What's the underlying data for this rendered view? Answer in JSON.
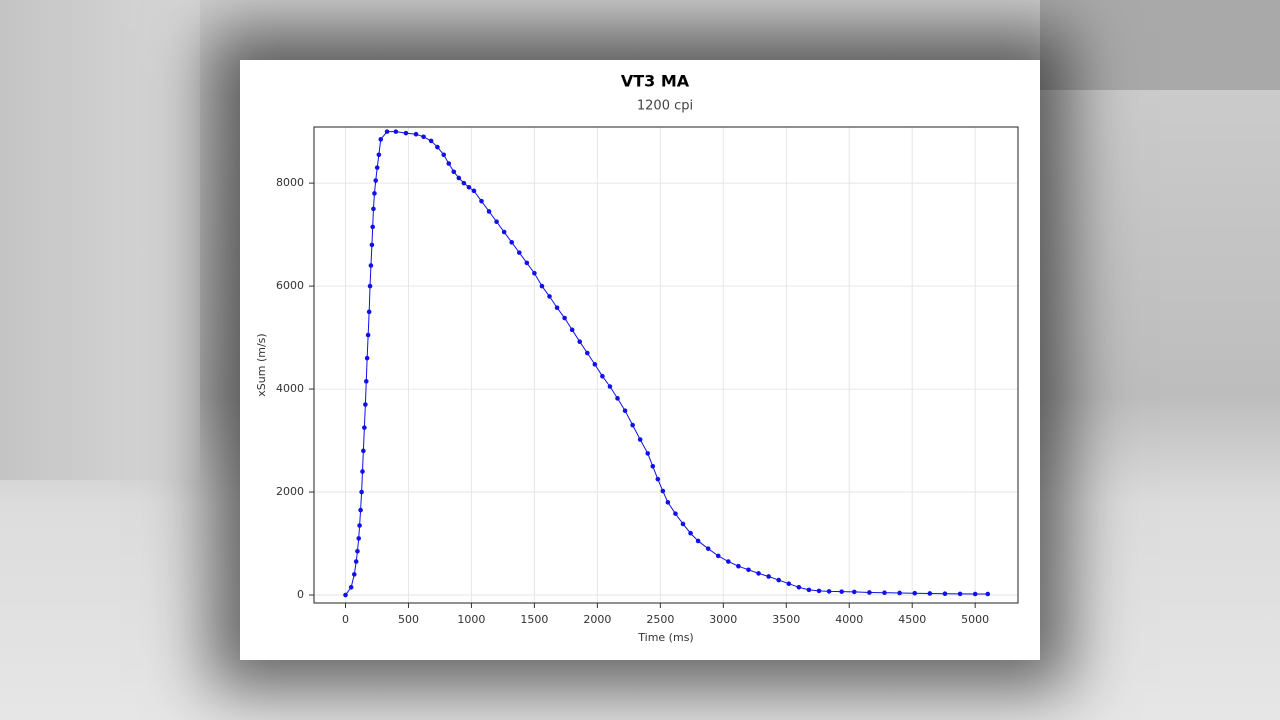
{
  "chart_data": {
    "type": "line",
    "title": "VT3 MA",
    "subtitle": "1200 cpi",
    "x_label": "Time (ms)",
    "y_label": "xSum (m/s)",
    "xlim": [
      -250,
      5340
    ],
    "ylim": [
      -155,
      9090
    ],
    "xticks": [
      0,
      500,
      1000,
      1500,
      2000,
      2500,
      3000,
      3500,
      4000,
      4500,
      5000
    ],
    "yticks": [
      0,
      2000,
      4000,
      6000,
      8000
    ],
    "grid": true,
    "series": [
      {
        "name": "VT3 MA",
        "color": "#1010e8",
        "x": [
          0,
          45,
          70,
          85,
          95,
          105,
          112,
          120,
          128,
          135,
          142,
          150,
          158,
          165,
          172,
          180,
          188,
          195,
          202,
          210,
          216,
          222,
          230,
          240,
          252,
          265,
          280,
          330,
          400,
          480,
          560,
          620,
          680,
          730,
          780,
          820,
          860,
          900,
          940,
          980,
          1020,
          1080,
          1140,
          1200,
          1260,
          1320,
          1380,
          1440,
          1500,
          1560,
          1620,
          1680,
          1740,
          1800,
          1860,
          1920,
          1980,
          2040,
          2100,
          2160,
          2220,
          2280,
          2340,
          2400,
          2440,
          2480,
          2520,
          2560,
          2620,
          2680,
          2740,
          2800,
          2880,
          2960,
          3040,
          3120,
          3200,
          3280,
          3360,
          3440,
          3520,
          3600,
          3680,
          3760,
          3840,
          3940,
          4040,
          4160,
          4280,
          4400,
          4520,
          4640,
          4760,
          4880,
          5000,
          5100
        ],
        "values": [
          0,
          150,
          400,
          650,
          850,
          1100,
          1350,
          1650,
          2000,
          2400,
          2800,
          3250,
          3700,
          4150,
          4600,
          5050,
          5500,
          6000,
          6400,
          6800,
          7150,
          7500,
          7800,
          8050,
          8300,
          8550,
          8850,
          9000,
          9000,
          8970,
          8950,
          8900,
          8820,
          8700,
          8550,
          8380,
          8220,
          8100,
          8000,
          7920,
          7850,
          7650,
          7450,
          7250,
          7050,
          6850,
          6650,
          6450,
          6250,
          6000,
          5800,
          5580,
          5380,
          5150,
          4920,
          4700,
          4480,
          4250,
          4050,
          3820,
          3580,
          3300,
          3020,
          2750,
          2500,
          2250,
          2020,
          1800,
          1580,
          1380,
          1200,
          1050,
          900,
          760,
          650,
          560,
          490,
          420,
          360,
          290,
          220,
          150,
          100,
          80,
          70,
          65,
          60,
          50,
          45,
          40,
          35,
          30,
          25,
          22,
          20,
          20
        ]
      }
    ]
  }
}
